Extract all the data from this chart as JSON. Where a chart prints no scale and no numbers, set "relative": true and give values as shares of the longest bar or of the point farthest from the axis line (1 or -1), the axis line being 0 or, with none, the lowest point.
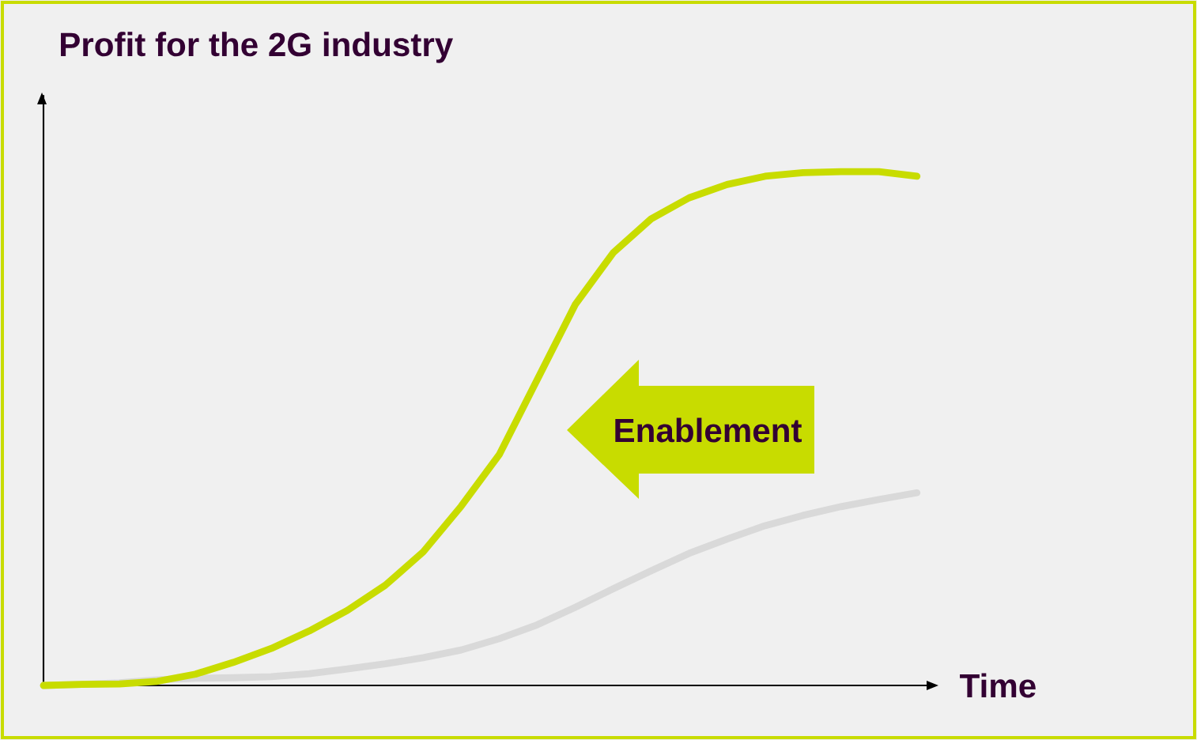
{
  "chart_data": {
    "type": "line",
    "relative": true,
    "tick_labels": false,
    "ylabel": "Profit for the 2G industry",
    "xlabel": "Time",
    "annotations": [
      "Enablement"
    ],
    "categories": [
      null,
      null,
      null,
      null,
      null,
      null,
      null,
      null,
      null,
      null,
      null,
      null,
      null,
      null,
      null,
      null,
      null,
      null,
      null,
      null,
      null,
      null,
      null,
      null
    ],
    "series": [
      {
        "color": "#d9d9d9",
        "values": [
          0,
          0.002,
          0.005,
          0.011,
          0.014,
          0.015,
          0.017,
          0.023,
          0.032,
          0.042,
          0.054,
          0.069,
          0.091,
          0.118,
          0.152,
          0.188,
          0.223,
          0.257,
          0.285,
          0.311,
          0.331,
          0.348,
          0.362,
          0.375
        ]
      },
      {
        "color": "#c8dc00",
        "values": [
          0,
          0.002,
          0.003,
          0.008,
          0.022,
          0.045,
          0.072,
          0.106,
          0.146,
          0.195,
          0.26,
          0.349,
          0.449,
          0.595,
          0.741,
          0.842,
          0.908,
          0.949,
          0.975,
          0.991,
          0.998,
          1.0,
          1.0,
          0.991
        ]
      }
    ]
  }
}
